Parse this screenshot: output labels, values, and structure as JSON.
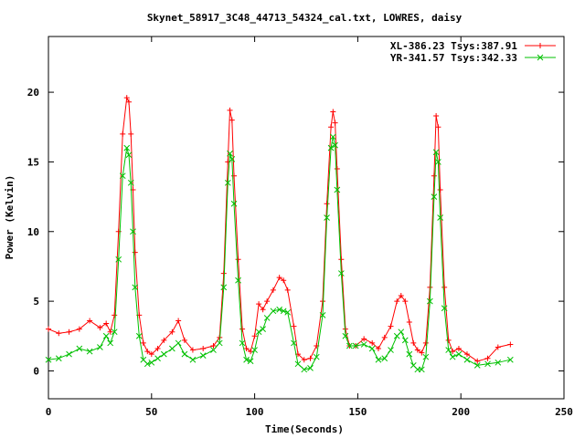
{
  "chart_data": {
    "type": "line",
    "title": "Skynet_58917_3C48_44713_54324_cal.txt, LOWRES, daisy",
    "xlabel": "Time(Seconds)",
    "ylabel": "Power (Kelvin)",
    "xlim": [
      0,
      250
    ],
    "ylim": [
      -2,
      24
    ],
    "x_ticks": [
      "0",
      "50",
      "100",
      "150",
      "200",
      "250"
    ],
    "y_ticks": [
      "0",
      "5",
      "10",
      "15",
      "20"
    ],
    "legend_position": "top-right",
    "grid": false,
    "series": [
      {
        "name": "XL-386.23 Tsys:387.91",
        "color": "#ff0000",
        "marker": "plus",
        "x": [
          0,
          5,
          10,
          15,
          20,
          25,
          28,
          30,
          32,
          34,
          36,
          38,
          39,
          40,
          41,
          42,
          44,
          46,
          48,
          50,
          53,
          56,
          60,
          63,
          66,
          70,
          75,
          80,
          83,
          85,
          87,
          88,
          89,
          90,
          92,
          94,
          96,
          98,
          100,
          102,
          104,
          106,
          109,
          112,
          114,
          116,
          119,
          121,
          124,
          127,
          130,
          133,
          135,
          137,
          138,
          139,
          140,
          142,
          144,
          146,
          149,
          153,
          157,
          160,
          163,
          166,
          169,
          171,
          173,
          175,
          177,
          179,
          181,
          183,
          185,
          187,
          188,
          189,
          190,
          192,
          194,
          196,
          199,
          203,
          208,
          213,
          218,
          224
        ],
        "y": [
          3.0,
          2.7,
          2.8,
          3.0,
          3.6,
          3.1,
          3.4,
          2.8,
          4.0,
          10.0,
          17.0,
          19.6,
          19.3,
          17.0,
          13.0,
          8.5,
          4.0,
          2.0,
          1.4,
          1.2,
          1.6,
          2.2,
          2.8,
          3.6,
          2.2,
          1.5,
          1.6,
          1.8,
          2.4,
          7.0,
          15.0,
          18.7,
          18.0,
          14.0,
          8.0,
          3.0,
          1.6,
          1.4,
          2.5,
          4.8,
          4.4,
          5.0,
          5.8,
          6.7,
          6.5,
          5.8,
          3.2,
          1.2,
          0.8,
          0.9,
          1.8,
          5.0,
          12.0,
          17.5,
          18.6,
          17.8,
          14.5,
          8.0,
          3.0,
          1.8,
          1.8,
          2.3,
          2.0,
          1.6,
          2.4,
          3.2,
          5.0,
          5.4,
          5.0,
          3.5,
          2.0,
          1.5,
          1.3,
          2.0,
          6.0,
          14.0,
          18.3,
          17.5,
          13.0,
          6.0,
          2.2,
          1.4,
          1.6,
          1.2,
          0.7,
          0.9,
          1.7,
          1.9
        ]
      },
      {
        "name": "YR-341.57 Tsys:342.33",
        "color": "#00c000",
        "marker": "cross",
        "x": [
          0,
          5,
          10,
          15,
          20,
          25,
          28,
          30,
          32,
          34,
          36,
          38,
          39,
          40,
          41,
          42,
          44,
          46,
          48,
          50,
          53,
          56,
          60,
          63,
          66,
          70,
          75,
          80,
          83,
          85,
          87,
          88,
          89,
          90,
          92,
          94,
          96,
          98,
          100,
          102,
          104,
          106,
          109,
          112,
          114,
          116,
          119,
          121,
          124,
          127,
          130,
          133,
          135,
          137,
          138,
          139,
          140,
          142,
          144,
          146,
          149,
          153,
          157,
          160,
          163,
          166,
          169,
          171,
          173,
          175,
          177,
          179,
          181,
          183,
          185,
          187,
          188,
          189,
          190,
          192,
          194,
          196,
          199,
          203,
          208,
          213,
          218,
          224
        ],
        "y": [
          0.8,
          0.9,
          1.2,
          1.6,
          1.4,
          1.7,
          2.5,
          2.0,
          2.8,
          8.0,
          14.0,
          16.0,
          15.5,
          13.5,
          10.0,
          6.0,
          2.5,
          0.8,
          0.5,
          0.6,
          0.9,
          1.2,
          1.6,
          2.0,
          1.2,
          0.8,
          1.1,
          1.5,
          2.0,
          6.0,
          13.5,
          15.6,
          15.2,
          12.0,
          6.5,
          2.0,
          0.8,
          0.7,
          1.5,
          2.8,
          3.0,
          3.8,
          4.3,
          4.4,
          4.3,
          4.2,
          2.0,
          0.5,
          0.1,
          0.2,
          1.0,
          4.0,
          11.0,
          16.0,
          16.8,
          16.2,
          13.0,
          7.0,
          2.5,
          1.8,
          1.8,
          1.9,
          1.6,
          0.8,
          0.9,
          1.5,
          2.5,
          2.8,
          2.2,
          1.2,
          0.4,
          0.1,
          0.1,
          1.0,
          5.0,
          12.5,
          15.7,
          15.0,
          11.0,
          4.5,
          1.5,
          1.0,
          1.2,
          0.8,
          0.4,
          0.5,
          0.6,
          0.8
        ]
      }
    ]
  }
}
